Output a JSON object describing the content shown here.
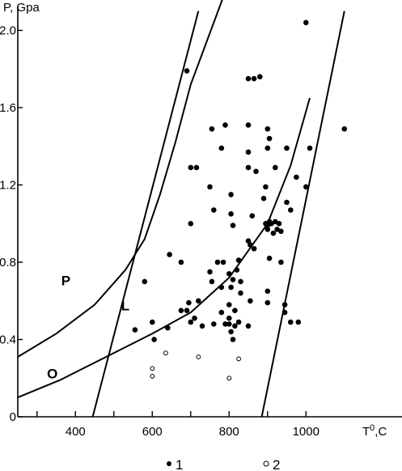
{
  "chart_data": {
    "type": "scatter",
    "ylabel": "P, Gpa",
    "xlabel": "T0,C",
    "xlabel_main": "T",
    "xlabel_sup": "0",
    "xlabel_unit": ",C",
    "xlim": [
      250,
      1000
    ],
    "ylim": [
      0,
      2.1
    ],
    "x_ticks": [
      400,
      600,
      800,
      1000
    ],
    "x_tick_labels": [
      "400",
      "600",
      "800",
      "1000"
    ],
    "y_ticks": [
      0,
      0.4,
      0.8,
      1.2,
      1.6,
      2.0
    ],
    "y_tick_labels": [
      "0",
      "0.4",
      "0.8",
      "1.2",
      "1.6",
      "2.0"
    ],
    "curves": [
      {
        "label": "P",
        "points": [
          [
            250,
            0.31
          ],
          [
            350,
            0.43
          ],
          [
            450,
            0.58
          ],
          [
            530,
            0.76
          ],
          [
            580,
            0.92
          ],
          [
            620,
            1.15
          ],
          [
            660,
            1.42
          ],
          [
            700,
            1.72
          ],
          [
            760,
            2.04
          ],
          [
            790,
            2.2
          ]
        ]
      },
      {
        "label": "L",
        "points": [
          [
            445,
            0
          ],
          [
            720,
            2.1
          ]
        ]
      },
      {
        "label": "O",
        "points": [
          [
            250,
            0.1
          ],
          [
            360,
            0.19
          ],
          [
            430,
            0.26
          ],
          [
            520,
            0.35
          ],
          [
            600,
            0.43
          ],
          [
            700,
            0.54
          ],
          [
            800,
            0.72
          ],
          [
            900,
            1.0
          ],
          [
            960,
            1.3
          ],
          [
            1010,
            1.65
          ]
        ]
      },
      {
        "label": "",
        "points": [
          [
            885,
            0
          ],
          [
            1100,
            2.1
          ]
        ]
      }
    ],
    "curve_labels": [
      {
        "text": "P",
        "x": 375,
        "y": 0.68
      },
      {
        "text": "L",
        "x": 530,
        "y": 0.55
      },
      {
        "text": "O",
        "x": 340,
        "y": 0.2
      }
    ],
    "series": [
      {
        "name": "1",
        "marker": "filled",
        "points": [
          [
            690,
            1.79
          ],
          [
            1000,
            2.04
          ],
          [
            850,
            1.75
          ],
          [
            865,
            1.75
          ],
          [
            880,
            1.76
          ],
          [
            755,
            1.49
          ],
          [
            790,
            1.51
          ],
          [
            850,
            1.51
          ],
          [
            900,
            1.49
          ],
          [
            905,
            1.44
          ],
          [
            950,
            1.39
          ],
          [
            1010,
            1.39
          ],
          [
            1100,
            1.49
          ],
          [
            780,
            1.39
          ],
          [
            850,
            1.37
          ],
          [
            900,
            1.39
          ],
          [
            700,
            1.29
          ],
          [
            715,
            1.29
          ],
          [
            850,
            1.29
          ],
          [
            870,
            1.27
          ],
          [
            920,
            1.29
          ],
          [
            975,
            1.24
          ],
          [
            750,
            1.19
          ],
          [
            895,
            1.19
          ],
          [
            1000,
            1.19
          ],
          [
            805,
            1.15
          ],
          [
            890,
            1.13
          ],
          [
            760,
            1.07
          ],
          [
            805,
            1.05
          ],
          [
            860,
            1.04
          ],
          [
            950,
            1.11
          ],
          [
            960,
            1.07
          ],
          [
            700,
            1.0
          ],
          [
            810,
            0.99
          ],
          [
            895,
            1.0
          ],
          [
            900,
            0.99
          ],
          [
            905,
            1.01
          ],
          [
            910,
            1.0
          ],
          [
            920,
            1.01
          ],
          [
            930,
            1.0
          ],
          [
            900,
            0.97
          ],
          [
            915,
            0.95
          ],
          [
            925,
            0.97
          ],
          [
            935,
            0.96
          ],
          [
            850,
            0.91
          ],
          [
            855,
            0.89
          ],
          [
            865,
            0.87
          ],
          [
            645,
            0.84
          ],
          [
            675,
            0.8
          ],
          [
            770,
            0.8
          ],
          [
            785,
            0.8
          ],
          [
            825,
            0.81
          ],
          [
            905,
            0.82
          ],
          [
            935,
            0.8
          ],
          [
            750,
            0.75
          ],
          [
            800,
            0.74
          ],
          [
            820,
            0.76
          ],
          [
            755,
            0.7
          ],
          [
            810,
            0.71
          ],
          [
            830,
            0.7
          ],
          [
            780,
            0.67
          ],
          [
            805,
            0.67
          ],
          [
            830,
            0.64
          ],
          [
            695,
            0.59
          ],
          [
            720,
            0.6
          ],
          [
            855,
            0.6
          ],
          [
            800,
            0.58
          ],
          [
            815,
            0.55
          ],
          [
            580,
            0.7
          ],
          [
            675,
            0.55
          ],
          [
            690,
            0.55
          ],
          [
            710,
            0.51
          ],
          [
            555,
            0.45
          ],
          [
            600,
            0.49
          ],
          [
            640,
            0.46
          ],
          [
            730,
            0.47
          ],
          [
            700,
            0.49
          ],
          [
            760,
            0.48
          ],
          [
            790,
            0.48
          ],
          [
            800,
            0.48
          ],
          [
            815,
            0.47
          ],
          [
            825,
            0.49
          ],
          [
            850,
            0.47
          ],
          [
            780,
            0.54
          ],
          [
            800,
            0.51
          ],
          [
            805,
            0.44
          ],
          [
            810,
            0.4
          ],
          [
            605,
            0.4
          ],
          [
            900,
            0.65
          ],
          [
            900,
            0.59
          ],
          [
            945,
            0.58
          ],
          [
            945,
            0.54
          ],
          [
            960,
            0.49
          ],
          [
            980,
            0.49
          ]
        ]
      },
      {
        "name": "2",
        "marker": "open",
        "points": [
          [
            635,
            0.33
          ],
          [
            720,
            0.31
          ],
          [
            825,
            0.3
          ],
          [
            600,
            0.25
          ],
          [
            600,
            0.21
          ],
          [
            800,
            0.2
          ]
        ]
      }
    ],
    "legend": {
      "placement": "bottom",
      "entries": [
        {
          "marker": "filled",
          "label": "1"
        },
        {
          "marker": "open",
          "label": "2"
        }
      ]
    }
  }
}
